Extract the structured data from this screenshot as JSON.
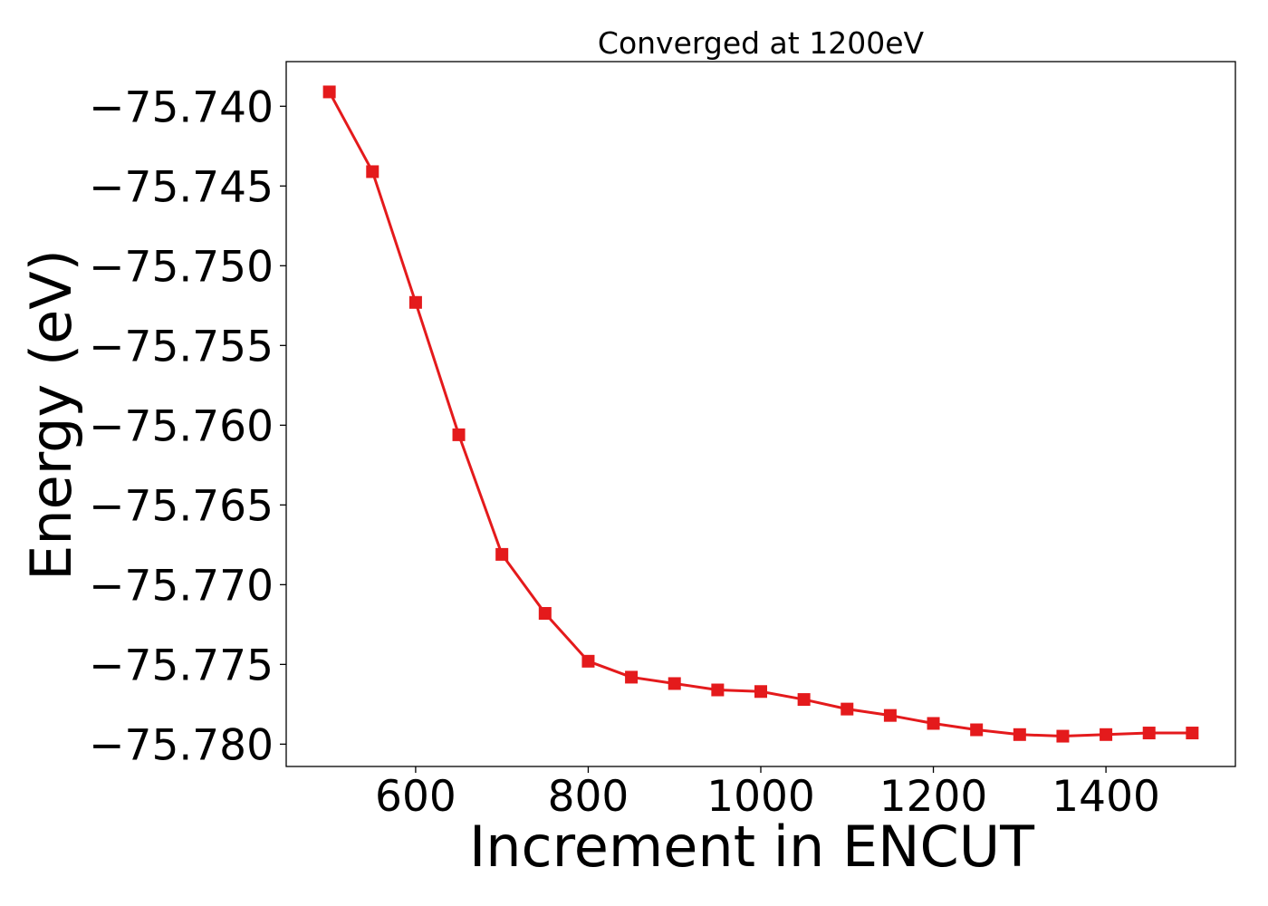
{
  "chart_data": {
    "type": "line",
    "title": "Converged at 1200eV",
    "xlabel": "Increment in ENCUT",
    "ylabel": "Energy (eV)",
    "xlim": [
      450,
      1550
    ],
    "ylim": [
      -75.7814,
      -75.7372
    ],
    "xticks": [
      600,
      800,
      1000,
      1200,
      1400
    ],
    "xtick_labels": [
      "600",
      "800",
      "1000",
      "1200",
      "1400"
    ],
    "yticks": [
      -75.74,
      -75.745,
      -75.75,
      -75.755,
      -75.76,
      -75.765,
      -75.77,
      -75.775,
      -75.78
    ],
    "ytick_labels": [
      "−75.740",
      "−75.745",
      "−75.750",
      "−75.755",
      "−75.760",
      "−75.765",
      "−75.770",
      "−75.775",
      "−75.780"
    ],
    "grid": false,
    "series": [
      {
        "color": "#e41a1c",
        "marker": "square",
        "x": [
          500,
          550,
          600,
          650,
          700,
          750,
          800,
          850,
          900,
          950,
          1000,
          1050,
          1100,
          1150,
          1200,
          1250,
          1300,
          1350,
          1400,
          1450,
          1500
        ],
        "y": [
          -75.7391,
          -75.7441,
          -75.7523,
          -75.7606,
          -75.7681,
          -75.7718,
          -75.7748,
          -75.7758,
          -75.7762,
          -75.7766,
          -75.7767,
          -75.7772,
          -75.7778,
          -75.7782,
          -75.7787,
          -75.7791,
          -75.7794,
          -75.7795,
          -75.7794,
          -75.7793,
          -75.7793
        ]
      }
    ]
  }
}
